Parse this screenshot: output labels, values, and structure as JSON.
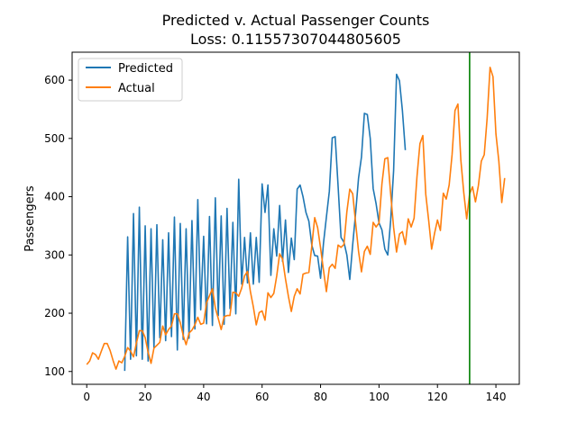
{
  "chart_data": {
    "type": "line",
    "title": "Predicted v. Actual Passenger Counts",
    "subtitle": "Loss: 0.11557307044805605",
    "xlabel": "",
    "ylabel": "Passengers",
    "xlim": [
      -5,
      148
    ],
    "ylim": [
      78,
      648
    ],
    "xticks": [
      0,
      20,
      40,
      60,
      80,
      100,
      120,
      140
    ],
    "yticks": [
      100,
      200,
      300,
      400,
      500,
      600
    ],
    "grid": false,
    "legend_position": "top-left",
    "vline": {
      "x": 131,
      "color": "#007f00"
    },
    "series": [
      {
        "name": "Predicted",
        "color": "#1f77b4",
        "start_x": 13,
        "values": [
          101,
          331,
          121,
          371,
          127,
          382,
          121,
          350,
          118,
          345,
          140,
          352,
          158,
          326,
          153,
          338,
          160,
          365,
          137,
          354,
          155,
          345,
          157,
          359,
          173,
          395,
          206,
          332,
          182,
          366,
          179,
          398,
          196,
          367,
          181,
          380,
          208,
          356,
          199,
          430,
          250,
          330,
          252,
          338,
          250,
          330,
          253,
          422,
          373,
          420,
          265,
          345,
          298,
          385,
          289,
          360,
          270,
          329,
          292,
          413,
          420,
          400,
          373,
          358,
          317,
          299,
          298,
          260,
          320,
          365,
          409,
          501,
          503,
          418,
          330,
          322,
          300,
          258,
          318,
          372,
          432,
          468,
          543,
          541,
          500,
          414,
          388,
          355,
          343,
          310,
          300,
          360,
          445,
          610,
          599,
          548,
          480
        ]
      },
      {
        "name": "Actual",
        "color": "#ff7f0e",
        "start_x": 0,
        "values": [
          112,
          118,
          132,
          129,
          121,
          135,
          148,
          148,
          136,
          119,
          104,
          118,
          115,
          126,
          141,
          135,
          125,
          149,
          170,
          170,
          158,
          133,
          114,
          140,
          145,
          150,
          178,
          163,
          172,
          178,
          199,
          199,
          184,
          162,
          146,
          166,
          171,
          180,
          193,
          181,
          183,
          218,
          230,
          242,
          209,
          191,
          172,
          194,
          196,
          196,
          236,
          235,
          229,
          243,
          264,
          272,
          237,
          211,
          180,
          201,
          204,
          188,
          235,
          227,
          234,
          264,
          302,
          293,
          259,
          229,
          203,
          229,
          242,
          233,
          267,
          269,
          270,
          315,
          364,
          347,
          312,
          274,
          237,
          278,
          284,
          277,
          317,
          313,
          318,
          374,
          413,
          405,
          355,
          306,
          271,
          306,
          315,
          301,
          356,
          348,
          355,
          422,
          465,
          467,
          404,
          347,
          305,
          336,
          340,
          318,
          362,
          348,
          363,
          435,
          491,
          505,
          404,
          359,
          310,
          337,
          360,
          342,
          406,
          396,
          420,
          472,
          548,
          559,
          463,
          407,
          362,
          405,
          417,
          391,
          419,
          461,
          472,
          535,
          622,
          606,
          508,
          461,
          390,
          432
        ]
      }
    ]
  }
}
